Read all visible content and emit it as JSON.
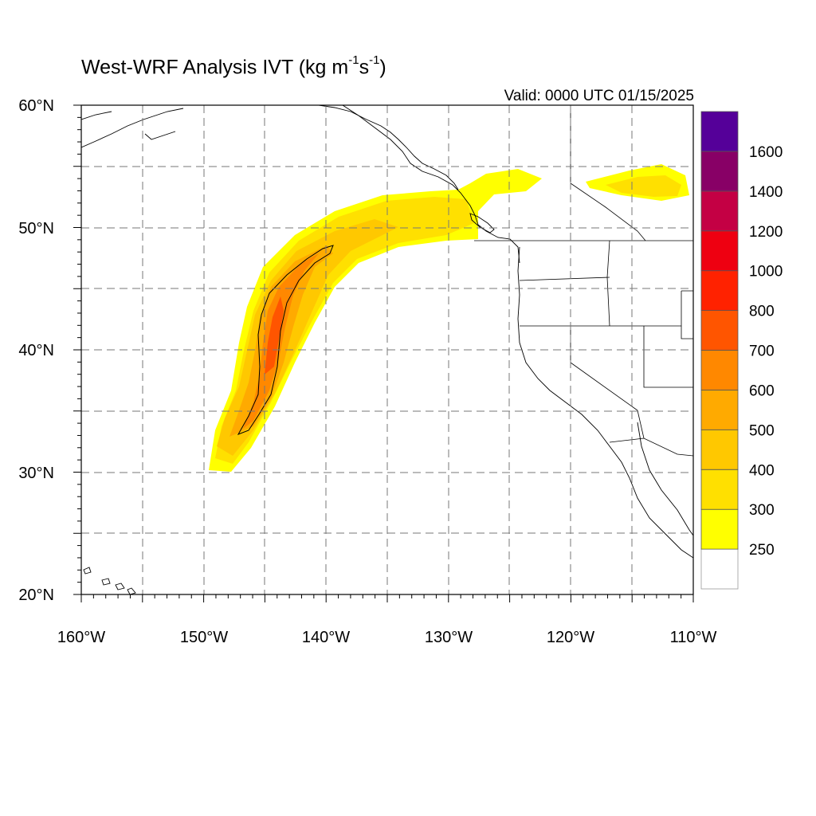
{
  "title": {
    "main": "West-WRF Analysis IVT (kg m",
    "exp1": "-1",
    "mid": "s",
    "exp2": "-1",
    "close": ")"
  },
  "valid_time": "Valid: 0000 UTC 01/15/2025",
  "axes": {
    "lon_min": -160,
    "lon_max": -110,
    "lat_min": 20,
    "lat_max": 60,
    "lon_labels": [
      "160°W",
      "150°W",
      "140°W",
      "130°W",
      "120°W",
      "110°W"
    ],
    "lat_labels": [
      "20°N",
      "30°N",
      "40°N",
      "50°N",
      "60°N"
    ],
    "gridlines": "dashed every 5°"
  },
  "colorbar": {
    "labels": [
      "250",
      "300",
      "400",
      "500",
      "600",
      "700",
      "800",
      "1000",
      "1200",
      "1400",
      "1600"
    ],
    "colors": [
      "#ffffff",
      "#ffff00",
      "#ffe000",
      "#ffc800",
      "#ffaa00",
      "#ff8800",
      "#ff5500",
      "#ff2200",
      "#ee0011",
      "#c40044",
      "#880066",
      "#550099"
    ]
  },
  "chart_data": {
    "type": "heatmap",
    "variable": "IVT",
    "units": "kg m-1 s-1",
    "contour_levels": [
      250,
      300,
      400,
      500,
      600,
      700,
      800,
      1000,
      1200,
      1400,
      1600
    ],
    "features": [
      {
        "description": "atmospheric river core",
        "approx_max_ivt": 700,
        "lat_range": [
          33,
          48
        ],
        "lon_range": [
          -147,
          -139
        ]
      },
      {
        "description": "atmospheric river plume to coast",
        "approx_ivt": [
          250,
          500
        ],
        "landfall_lat": 49
      }
    ]
  }
}
